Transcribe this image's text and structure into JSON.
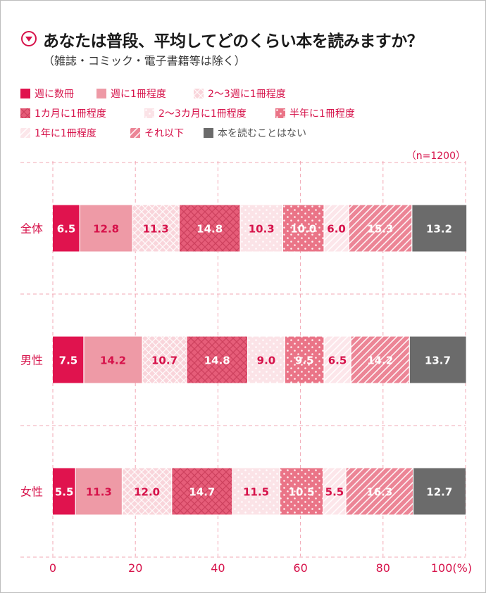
{
  "title": "あなたは普段、平均してどのくらい本を読みますか？",
  "subtitle": "（雑誌・コミック・電子書籍等は除く）",
  "sample_size": "（n=1200）",
  "colors": {
    "accent": "#d6124a",
    "dark": "#6b6b6b"
  },
  "chart_data": {
    "type": "bar",
    "orientation": "horizontal",
    "stacked": true,
    "categories": [
      "全体",
      "男性",
      "女性"
    ],
    "series": [
      {
        "name": "週に数冊",
        "values": [
          6.5,
          7.5,
          5.5
        ],
        "color": "#e0134e",
        "pattern": "solid"
      },
      {
        "name": "週に1冊程度",
        "values": [
          12.8,
          14.2,
          11.3
        ],
        "color": "#ee9aa6",
        "pattern": "solid"
      },
      {
        "name": "2〜3週に1冊程度",
        "values": [
          11.3,
          10.7,
          12.0
        ],
        "color": "#f9d5db",
        "pattern": "grid"
      },
      {
        "name": "1カ月に1冊程度",
        "values": [
          14.8,
          14.8,
          14.7
        ],
        "color": "#e65d79",
        "pattern": "crosshatch"
      },
      {
        "name": "2〜3カ月に1冊程度",
        "values": [
          10.3,
          9.0,
          11.5
        ],
        "color": "#fbe3e7",
        "pattern": "dots"
      },
      {
        "name": "半年に1冊程度",
        "values": [
          10.0,
          9.5,
          10.5
        ],
        "color": "#ea7487",
        "pattern": "dots"
      },
      {
        "name": "1年に1冊程度",
        "values": [
          6.0,
          6.5,
          5.5
        ],
        "color": "#fce6ea",
        "pattern": "stripes"
      },
      {
        "name": "それ以下",
        "values": [
          15.3,
          14.2,
          16.3
        ],
        "color": "#ec8596",
        "pattern": "stripes"
      },
      {
        "name": "本を読むことはない",
        "values": [
          13.2,
          13.7,
          12.7
        ],
        "color": "#6b6b6b",
        "pattern": "solid"
      }
    ],
    "data_labels": [
      [
        "6.5",
        "12.8",
        "11.3",
        "14.8",
        "10.3",
        "10.0",
        "6.0",
        "15.3",
        "13.2"
      ],
      [
        "7.5",
        "14.2",
        "10.7",
        "14.8",
        "9.0",
        "9.5",
        "6.5",
        "14.2",
        "13.7"
      ],
      [
        "5.5",
        "11.3",
        "12.0",
        "14.7",
        "11.5",
        "10.5",
        "5.5",
        "16.3",
        "12.7"
      ]
    ],
    "x_ticks": [
      "0",
      "20",
      "40",
      "60",
      "80",
      "100(%)"
    ],
    "xlim": [
      0,
      100
    ],
    "grid": true,
    "legend_position": "top"
  }
}
